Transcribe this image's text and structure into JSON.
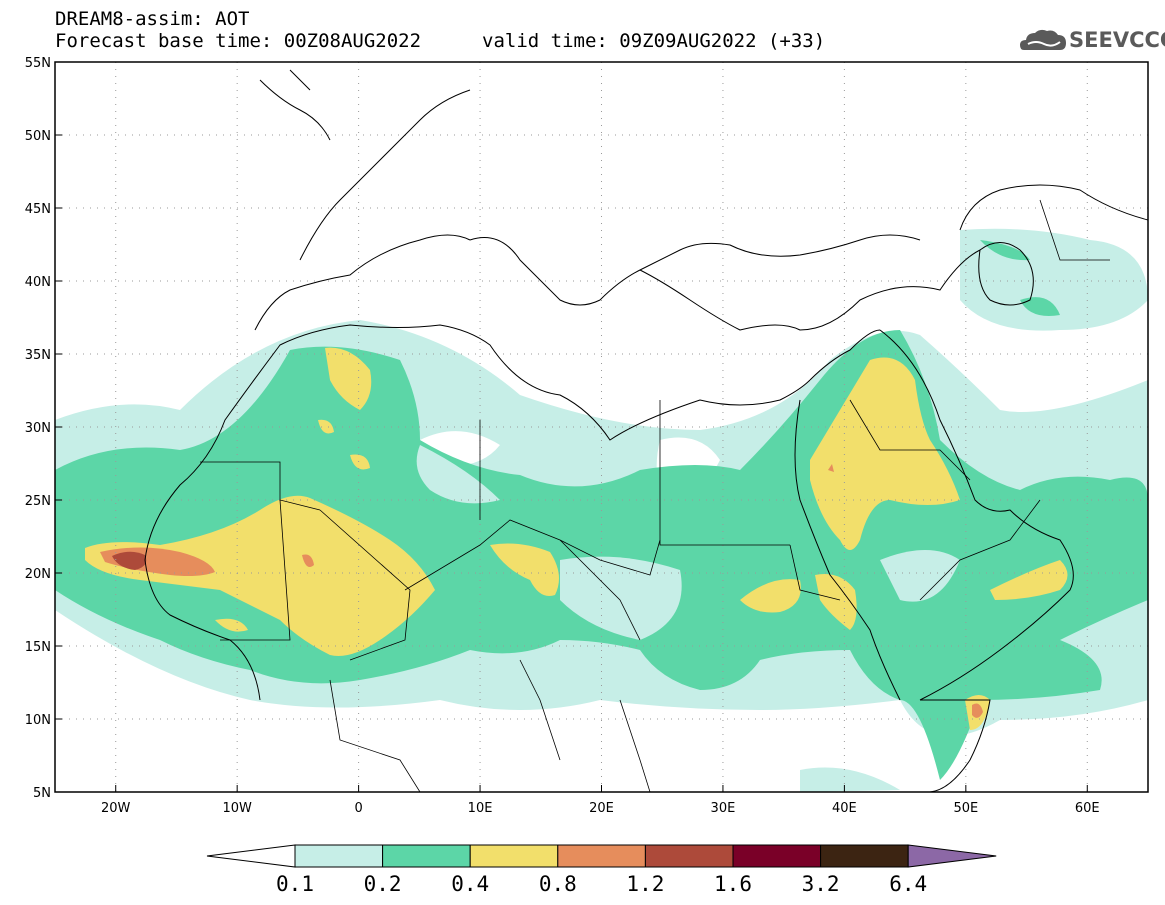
{
  "header": {
    "title": "DREAM8-assim: AOT",
    "base_time": "Forecast base time: 00Z08AUG2022",
    "valid_time": "valid time: 09Z09AUG2022 (+33)"
  },
  "logo": {
    "text": "SEEVCCC",
    "icon": "cloud-logo-icon"
  },
  "map": {
    "lat_range": [
      5,
      55
    ],
    "lon_range": [
      -25,
      65
    ],
    "lat_ticks": [
      "5N",
      "10N",
      "15N",
      "20N",
      "25N",
      "30N",
      "35N",
      "40N",
      "45N",
      "50N",
      "55N"
    ],
    "lon_ticks": [
      "20W",
      "10W",
      "0",
      "10E",
      "20E",
      "30E",
      "40E",
      "50E",
      "60E"
    ],
    "grid": true
  },
  "colorbar": {
    "labels": [
      "0.1",
      "0.2",
      "0.4",
      "0.8",
      "1.2",
      "1.6",
      "3.2",
      "6.4"
    ],
    "colors": [
      "#ffffff",
      "#c6eee7",
      "#5cd6a7",
      "#f2df6b",
      "#e68d5c",
      "#ad4a3a",
      "#7a0028",
      "#3c2412",
      "#8c68a6"
    ]
  }
}
